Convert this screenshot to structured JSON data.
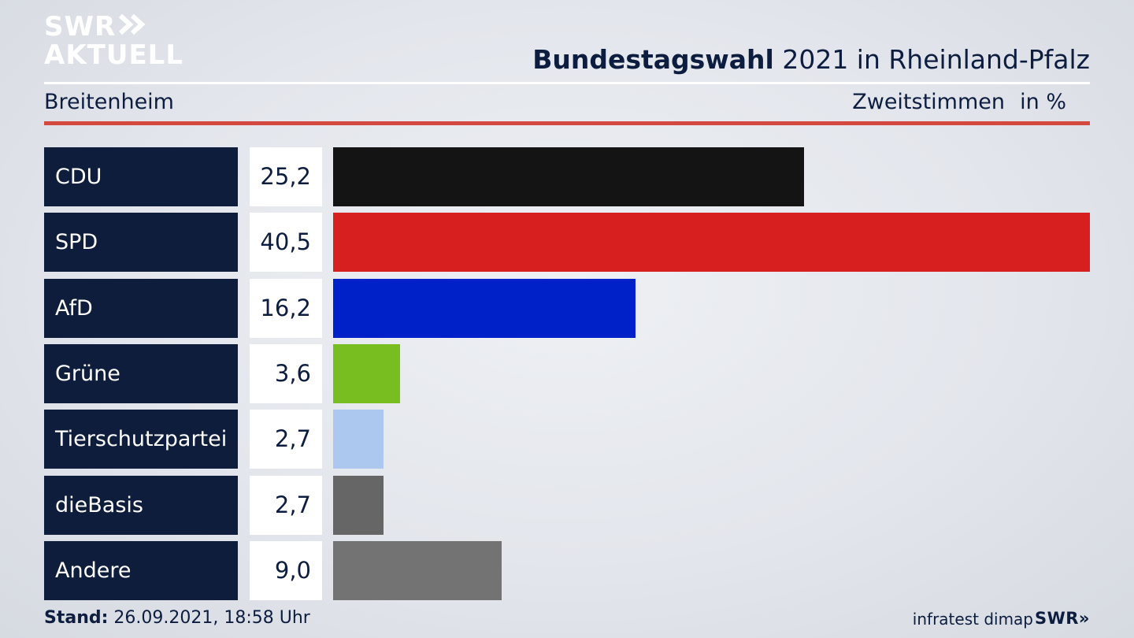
{
  "logo": {
    "line1": "SWR",
    "line2": "AKTUELL",
    "chevrons": "»"
  },
  "header": {
    "title_bold": "Bundestagswahl",
    "title_rest": " 2021 in Rheinland-Pfalz"
  },
  "subheader": {
    "location": "Breitenheim",
    "measure": "Zweitstimmen",
    "unit": "in %"
  },
  "footer": {
    "stand_label": "Stand:",
    "stand_value": " 26.09.2021, 18:58 Uhr",
    "source": "infratest dimap",
    "brand": "SWR»"
  },
  "chart_data": {
    "type": "bar",
    "orientation": "horizontal",
    "categories": [
      "CDU",
      "SPD",
      "AfD",
      "Grüne",
      "Tierschutzpartei",
      "dieBasis",
      "Andere"
    ],
    "values": [
      25.2,
      40.5,
      16.2,
      3.6,
      2.7,
      2.7,
      9.0
    ],
    "value_labels": [
      "25,2",
      "40,5",
      "16,2",
      "3,6",
      "2,7",
      "2,7",
      "9,0"
    ],
    "colors": [
      "#141414",
      "#d71f1f",
      "#0021c7",
      "#78be20",
      "#adc8ee",
      "#666666",
      "#737373"
    ],
    "unit": "in %"
  }
}
